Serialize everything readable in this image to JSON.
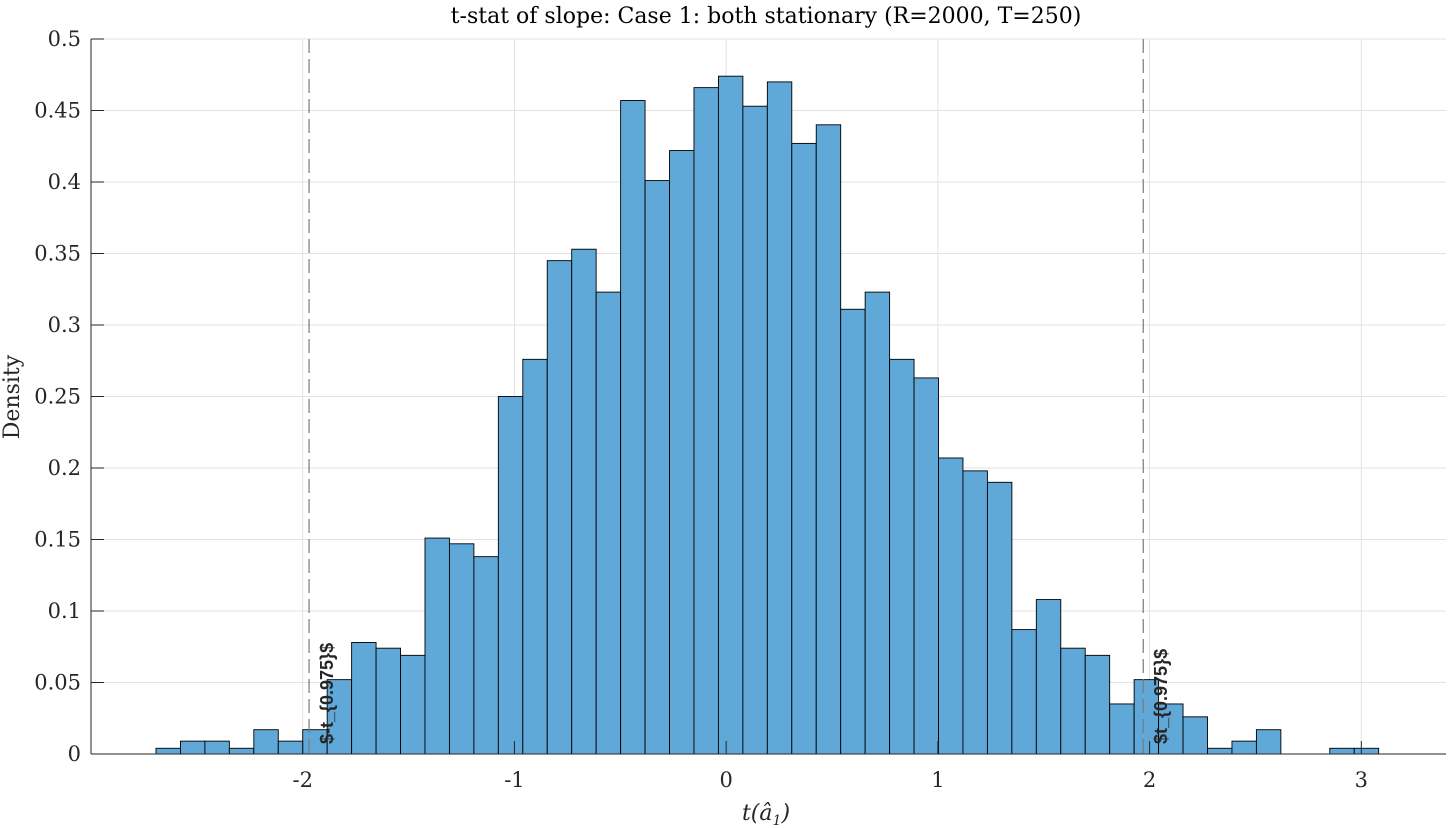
{
  "chart_data": {
    "type": "bar",
    "title": "t-stat of slope: Case 1: both stationary (R=2000, T=250)",
    "xlabel": "t(â₁)",
    "ylabel": "Density",
    "xlim": [
      -3.0,
      3.4
    ],
    "ylim": [
      0,
      0.5
    ],
    "xticks": [
      -2,
      -1,
      0,
      1,
      2,
      3
    ],
    "xtick_labels": [
      "-2",
      "-1",
      "0",
      "1",
      "2",
      "3"
    ],
    "yticks": [
      0,
      0.05,
      0.1,
      0.15,
      0.2,
      0.25,
      0.3,
      0.35,
      0.4,
      0.45,
      0.5
    ],
    "ytick_labels": [
      "0",
      "0.05",
      "0.1",
      "0.15",
      "0.2",
      "0.25",
      "0.3",
      "0.35",
      "0.4",
      "0.45",
      "0.5"
    ],
    "grid": true,
    "bin_width": 0.1155,
    "bin_start": -2.693,
    "values": [
      0.004,
      0.009,
      0.009,
      0.004,
      0.017,
      0.009,
      0.017,
      0.052,
      0.078,
      0.074,
      0.069,
      0.151,
      0.147,
      0.138,
      0.25,
      0.276,
      0.345,
      0.353,
      0.323,
      0.457,
      0.401,
      0.422,
      0.466,
      0.474,
      0.453,
      0.47,
      0.427,
      0.44,
      0.311,
      0.323,
      0.276,
      0.263,
      0.207,
      0.198,
      0.19,
      0.087,
      0.108,
      0.074,
      0.069,
      0.035,
      0.052,
      0.035,
      0.026,
      0.004,
      0.009,
      0.017,
      0,
      0,
      0.004,
      0.004
    ],
    "bar_color": "#5fa8d8",
    "bar_edge_color": "#000000",
    "critical_lines": [
      {
        "x": -1.97,
        "label": "$-t_{0.975}$"
      },
      {
        "x": 1.97,
        "label": "$t_{0.975}$"
      }
    ]
  }
}
